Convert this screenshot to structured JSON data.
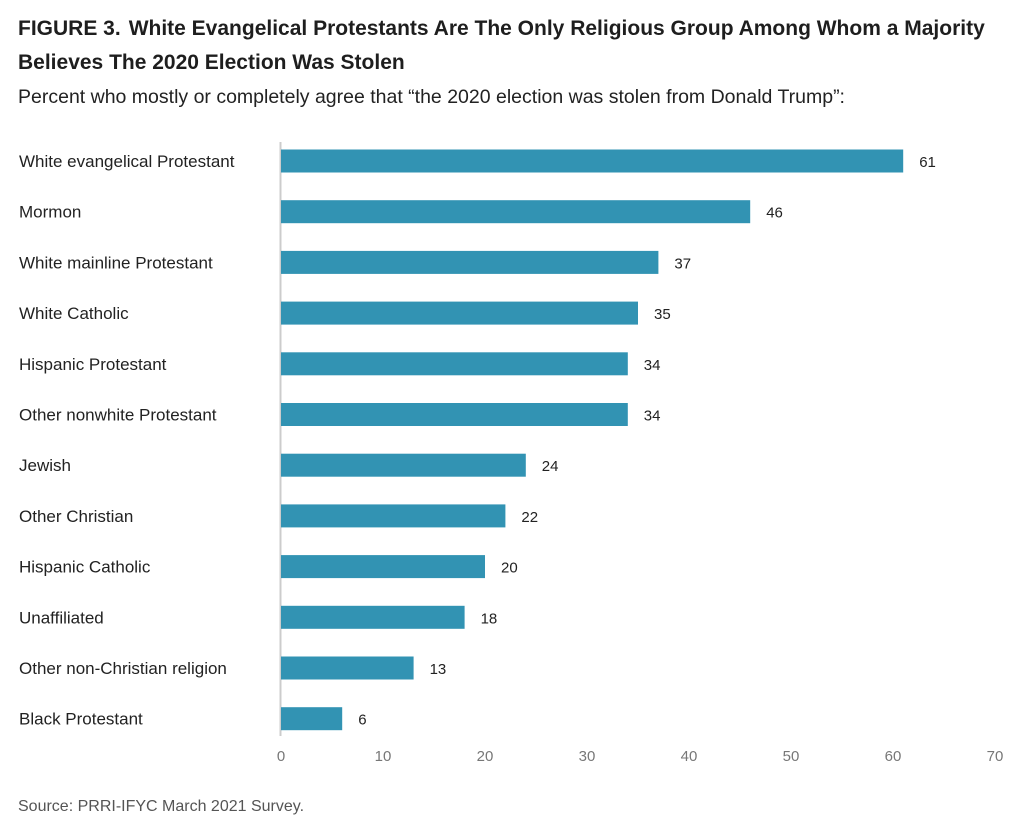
{
  "figure": {
    "label": "FIGURE 3.",
    "title": "White Evangelical Protestants Are The Only Religious Group Among Whom a Majority Believes The 2020 Election Was Stolen",
    "subtitle": "Percent who mostly or completely agree that “the 2020 election was stolen from Donald Trump”:",
    "source": "Source: PRRI-IFYC March 2021 Survey."
  },
  "colors": {
    "bar": "#3293b3",
    "axis": "#cccccc",
    "tick_text": "#777777",
    "label_text": "#222222"
  },
  "chart_data": {
    "type": "bar",
    "orientation": "horizontal",
    "title": "White Evangelical Protestants Are The Only Religious Group Among Whom a Majority Believes The 2020 Election Was Stolen",
    "subtitle": "Percent who mostly or completely agree that “the 2020 election was stolen from Donald Trump”:",
    "categories": [
      "White evangelical Protestant",
      "Mormon",
      "White mainline Protestant",
      "White Catholic",
      "Hispanic Protestant",
      "Other nonwhite Protestant",
      "Jewish",
      "Other Christian",
      "Hispanic Catholic",
      "Unaffiliated",
      "Other non-Christian religion",
      "Black Protestant"
    ],
    "values": [
      61,
      46,
      37,
      35,
      34,
      34,
      24,
      22,
      20,
      18,
      13,
      6
    ],
    "xlim": [
      0,
      70
    ],
    "xticks": [
      0,
      10,
      20,
      30,
      40,
      50,
      60,
      70
    ],
    "xlabel": "",
    "ylabel": "",
    "grid": false,
    "data_labels": true
  }
}
